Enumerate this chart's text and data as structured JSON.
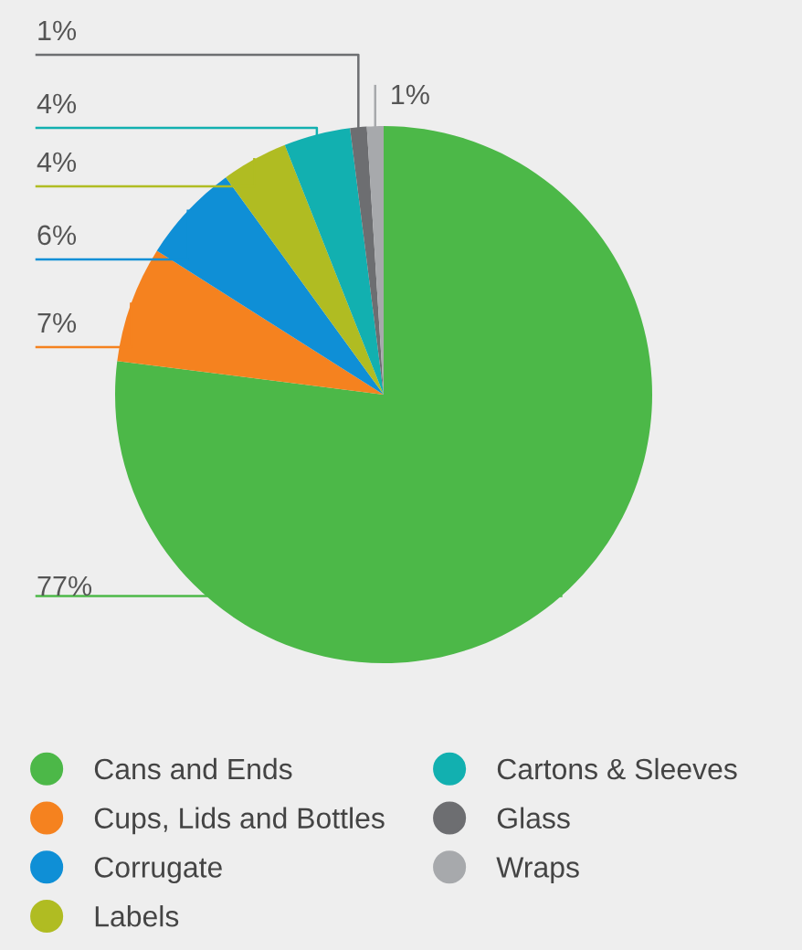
{
  "chart_data": {
    "type": "pie",
    "categories": [
      "Cans and Ends",
      "Cups, Lids and Bottles",
      "Corrugate",
      "Labels",
      "Cartons & Sleeves",
      "Glass",
      "Wraps"
    ],
    "values": [
      77,
      7,
      6,
      4,
      4,
      1,
      1
    ],
    "colors": [
      "#4cb848",
      "#f5821f",
      "#0f8fd6",
      "#b0bc22",
      "#12b0b0",
      "#6d6e71",
      "#a7a9ac"
    ],
    "value_labels": [
      "77%",
      "7%",
      "6%",
      "4%",
      "4%",
      "1%",
      "1%"
    ],
    "legend": "bottom"
  }
}
